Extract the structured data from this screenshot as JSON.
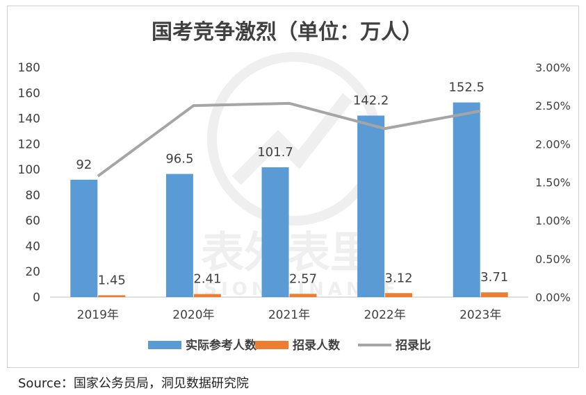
{
  "chart_data": {
    "type": "bar",
    "title": "国考竞争激烈（单位：万人）",
    "categories": [
      "2019年",
      "2020年",
      "2021年",
      "2022年",
      "2023年"
    ],
    "series": [
      {
        "name": "实际参考人数",
        "type": "bar",
        "axis": "left",
        "color": "#5b9bd5",
        "values": [
          92,
          96.5,
          101.7,
          142.2,
          152.5
        ],
        "labels": [
          "92",
          "96.5",
          "101.7",
          "142.2",
          "152.5"
        ]
      },
      {
        "name": "招录人数",
        "type": "bar",
        "axis": "left",
        "color": "#ed7d31",
        "values": [
          1.45,
          2.41,
          2.57,
          3.12,
          3.71
        ],
        "labels": [
          "1.45",
          "2.41",
          "2.57",
          "3.12",
          "3.71"
        ]
      },
      {
        "name": "招录比",
        "type": "line",
        "axis": "right",
        "color": "#a5a5a5",
        "values": [
          0.0158,
          0.025,
          0.0253,
          0.022,
          0.0243
        ]
      }
    ],
    "y_left": {
      "min": 0,
      "max": 180,
      "ticks": [
        "0",
        "20",
        "40",
        "60",
        "80",
        "100",
        "120",
        "140",
        "160",
        "180"
      ]
    },
    "y_right": {
      "min": 0,
      "max": 0.03,
      "ticks": [
        "0.00%",
        "0.50%",
        "1.00%",
        "1.50%",
        "2.00%",
        "2.50%",
        "3.00%"
      ]
    },
    "grid": false,
    "legend": "bottom"
  },
  "watermark": {
    "cn": "表外表里",
    "en": "VISION FINANCE"
  },
  "source": "Source：国家公务员局，洞见数据研究院"
}
